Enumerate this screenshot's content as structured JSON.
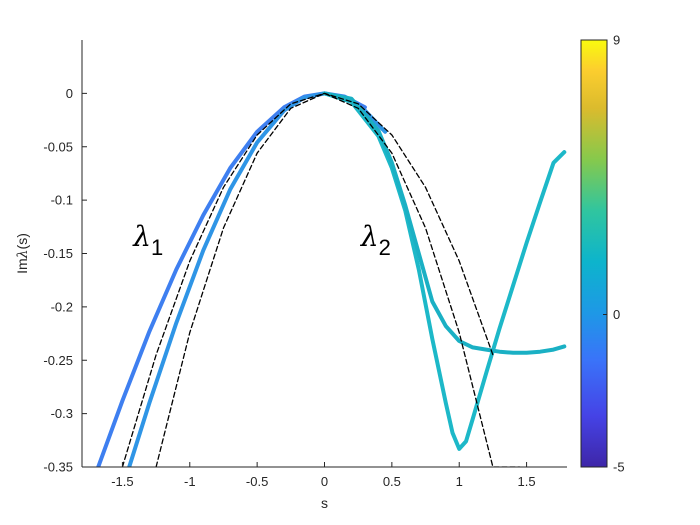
{
  "chart_data": {
    "type": "line",
    "title": "",
    "xlabel": "s",
    "ylabel_prefix": "Im",
    "ylabel_symbol": "λ",
    "ylabel_suffix": "(s)",
    "xlim": [
      -1.8,
      1.8
    ],
    "ylim": [
      -0.35,
      0.05
    ],
    "xticks": [
      -1.5,
      -1,
      -0.5,
      0,
      0.5,
      1,
      1.5
    ],
    "xtick_labels": [
      "-1.5",
      "-1",
      "-0.5",
      "0",
      "0.5",
      "1",
      "1.5"
    ],
    "yticks": [
      0,
      -0.05,
      -0.1,
      -0.15,
      -0.2,
      -0.25,
      -0.3,
      -0.35
    ],
    "ytick_labels": [
      "0",
      "-0.05",
      "-0.1",
      "-0.15",
      "-0.2",
      "-0.25",
      "-0.3",
      "-0.35"
    ],
    "grid": false,
    "colorbar": {
      "min": -5,
      "max": 9,
      "ticks": [
        -5,
        0,
        9
      ],
      "tick_labels": [
        "-5",
        "0",
        "9"
      ],
      "colormap": "parula"
    },
    "annotations": [
      {
        "symbol": "λ",
        "subscript": "1",
        "x": -1.42,
        "y": -0.143
      },
      {
        "symbol": "λ",
        "subscript": "2",
        "x": 0.27,
        "y": -0.143
      }
    ],
    "series": [
      {
        "color": "#3e7ff0",
        "style": "solid",
        "x": [
          -1.68,
          -1.5,
          -1.3,
          -1.1,
          -0.9,
          -0.7,
          -0.5,
          -0.3,
          -0.15,
          0,
          0.15,
          0.3
        ],
        "y": [
          -0.35,
          -0.288,
          -0.223,
          -0.165,
          -0.114,
          -0.07,
          -0.036,
          -0.013,
          -0.003,
          0,
          -0.003,
          -0.013
        ]
      },
      {
        "color": "#2f95e6",
        "style": "solid",
        "x": [
          -1.45,
          -1.3,
          -1.1,
          -0.9,
          -0.7,
          -0.5,
          -0.3,
          -0.15,
          0,
          0.15,
          0.3,
          0.45
        ],
        "y": [
          -0.35,
          -0.29,
          -0.215,
          -0.147,
          -0.09,
          -0.046,
          -0.016,
          -0.004,
          0,
          -0.004,
          -0.016,
          -0.036
        ]
      },
      {
        "color": "#1db8c8",
        "style": "solid",
        "x": [
          0,
          0.2,
          0.4,
          0.5,
          0.6,
          0.7,
          0.8,
          0.9,
          0.95,
          1.0,
          1.05,
          1.1,
          1.2,
          1.3,
          1.4,
          1.5,
          1.6,
          1.7,
          1.78
        ],
        "y": [
          0,
          -0.008,
          -0.04,
          -0.07,
          -0.11,
          -0.165,
          -0.23,
          -0.29,
          -0.318,
          -0.333,
          -0.326,
          -0.305,
          -0.262,
          -0.22,
          -0.18,
          -0.14,
          -0.102,
          -0.065,
          -0.055
        ]
      },
      {
        "color": "#1ab0c4",
        "style": "solid",
        "x": [
          0,
          0.2,
          0.4,
          0.5,
          0.6,
          0.7,
          0.8,
          0.9,
          1.0,
          1.1,
          1.2,
          1.3,
          1.4,
          1.5,
          1.6,
          1.7,
          1.78
        ],
        "y": [
          0,
          -0.005,
          -0.035,
          -0.065,
          -0.105,
          -0.15,
          -0.195,
          -0.218,
          -0.232,
          -0.238,
          -0.24,
          -0.242,
          -0.243,
          -0.243,
          -0.242,
          -0.24,
          -0.237
        ]
      },
      {
        "color": "#000000",
        "style": "dashed",
        "x": [
          -1.5,
          -1.25,
          -1.0,
          -0.75,
          -0.5,
          -0.25,
          0,
          0.25,
          0.5,
          0.75,
          1.0,
          1.25
        ],
        "y": [
          -0.35,
          -0.245,
          -0.157,
          -0.088,
          -0.039,
          -0.0098,
          0,
          -0.0098,
          -0.039,
          -0.088,
          -0.157,
          -0.245
        ]
      },
      {
        "color": "#000000",
        "style": "dashed",
        "x": [
          -1.25,
          -1.0,
          -0.75,
          -0.5,
          -0.25,
          0,
          0.25,
          0.5,
          0.75,
          1.0,
          1.25,
          1.45
        ],
        "y": [
          -0.35,
          -0.224,
          -0.126,
          -0.056,
          -0.014,
          0,
          -0.014,
          -0.056,
          -0.126,
          -0.224,
          -0.35,
          -0.35
        ]
      }
    ]
  }
}
